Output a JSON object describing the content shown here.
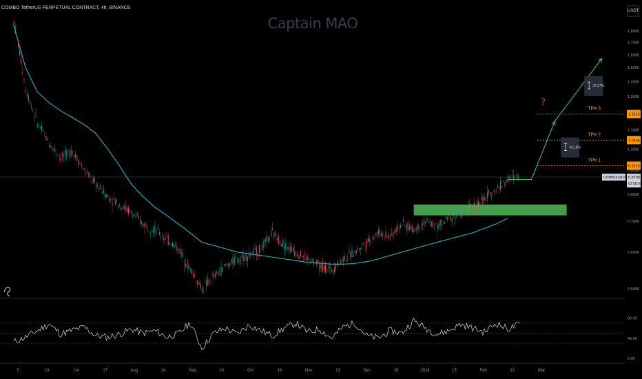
{
  "header": {
    "ticker": "COMBO TetherUS PERPETUAL CONTRACT, 4h, BINANCE",
    "watermark": "Captain MAO",
    "currency": "USDT"
  },
  "colors": {
    "background": "#000000",
    "ema": "#2aa6b8",
    "candle_up": "#26a69a",
    "candle_down": "#ef5350",
    "target_zone": "#4caf50",
    "projection_arrow": "#4caf50",
    "tp_line": "#ff9800",
    "question_mark": "#e53935",
    "rsi_line": "#e0e0e0",
    "grid": "#2a2e39"
  },
  "chart_data": [
    {
      "type": "line",
      "title": "",
      "x_tick_labels": [
        "5",
        "19",
        "Jul",
        "17",
        "Aug",
        "14",
        "Sep",
        "18",
        "Oct",
        "16",
        "Nov",
        "13",
        "Dec",
        "18",
        "2024",
        "15",
        "Feb",
        "12",
        "Mar"
      ],
      "y_tick_labels": [
        "1.8000",
        "1.7000",
        "1.6000",
        "1.5000",
        "1.4000",
        "1.3000",
        "1.2000",
        "1.1000",
        "1.0000",
        "0.9000",
        "0.8000",
        "0.7000",
        "0.6000",
        "0.5000"
      ],
      "y_scale": "log",
      "ylim": [
        0.48,
        1.92
      ],
      "series": [
        {
          "kind": "price",
          "x": [
            0,
            2,
            4,
            6,
            8,
            10,
            12,
            14,
            16,
            18,
            20,
            22,
            24,
            26,
            28,
            30,
            32,
            34,
            36,
            38,
            40,
            42,
            44,
            46,
            48,
            50,
            52,
            54,
            56,
            58,
            60,
            62,
            64,
            66,
            68,
            70,
            72,
            74,
            76,
            78,
            80,
            82,
            84,
            86
          ],
          "values": [
            1.88,
            1.35,
            1.14,
            1.03,
            0.96,
            0.99,
            0.9,
            0.84,
            0.79,
            0.76,
            0.73,
            0.69,
            0.67,
            0.64,
            0.61,
            0.55,
            0.5,
            0.53,
            0.56,
            0.58,
            0.59,
            0.61,
            0.66,
            0.62,
            0.6,
            0.58,
            0.56,
            0.55,
            0.58,
            0.6,
            0.63,
            0.66,
            0.65,
            0.69,
            0.67,
            0.7,
            0.68,
            0.71,
            0.73,
            0.75,
            0.78,
            0.82,
            0.86,
            0.88
          ]
        },
        {
          "kind": "ema",
          "x": [
            0,
            2,
            4,
            6,
            8,
            10,
            12,
            14,
            16,
            18,
            20,
            22,
            24,
            26,
            28,
            30,
            32,
            34,
            36,
            38,
            40,
            42,
            44,
            46,
            48,
            50,
            52,
            54,
            56,
            58,
            60,
            62,
            64,
            66,
            68,
            70,
            72,
            74,
            76,
            78,
            80,
            82,
            84
          ],
          "values": [
            1.85,
            1.5,
            1.33,
            1.26,
            1.21,
            1.17,
            1.13,
            1.08,
            1.0,
            0.92,
            0.84,
            0.79,
            0.75,
            0.72,
            0.69,
            0.66,
            0.63,
            0.62,
            0.61,
            0.6,
            0.595,
            0.59,
            0.585,
            0.58,
            0.575,
            0.57,
            0.568,
            0.565,
            0.565,
            0.567,
            0.572,
            0.58,
            0.59,
            0.6,
            0.61,
            0.62,
            0.63,
            0.64,
            0.65,
            0.66,
            0.675,
            0.69,
            0.71
          ]
        },
        {
          "kind": "projection",
          "x": [
            84,
            88,
            92,
            100
          ],
          "values": [
            0.86,
            0.86,
            1.15,
            1.57
          ]
        }
      ],
      "target_zone": {
        "x_start": 68,
        "x_end": 94,
        "y_low": 0.72,
        "y_high": 0.76
      },
      "horizontal_levels": [
        {
          "name": "TP# 1",
          "value": 0.9215,
          "label": "TP# 1",
          "price_label": "0.9215"
        },
        {
          "name": "TP# 2",
          "value": 1.0465,
          "label": "TP# 2",
          "price_label": "1.0465"
        },
        {
          "name": "TP# 3",
          "value": 1.1915,
          "label": "TP# 3",
          "price_label": "1.1915"
        }
      ],
      "current_price": {
        "symbol": "COMBOUSDT.P",
        "value": 0.8708,
        "price_label": "0.8708",
        "countdown": "02:58:01"
      },
      "annotations": [
        {
          "text": "?",
          "x": 90,
          "y": 1.245
        },
        {
          "text": "42.18%",
          "x": 93,
          "y": 1.06
        },
        {
          "text": "37.37%",
          "x": 97,
          "y": 1.44
        }
      ]
    },
    {
      "type": "line",
      "title": "",
      "ylim": [
        0,
        100
      ],
      "y_tick_labels": [
        "80.00",
        "40.00",
        "0.00"
      ],
      "reference_lines": [
        70,
        50,
        30
      ],
      "series": [
        {
          "kind": "rsi",
          "x": [
            0,
            2,
            4,
            6,
            8,
            10,
            12,
            14,
            16,
            18,
            20,
            22,
            24,
            26,
            28,
            30,
            32,
            34,
            36,
            38,
            40,
            42,
            44,
            46,
            48,
            50,
            52,
            54,
            56,
            58,
            60,
            62,
            64,
            66,
            68,
            70,
            72,
            74,
            76,
            78,
            80,
            82,
            84,
            86
          ],
          "values": [
            32,
            42,
            55,
            68,
            48,
            56,
            62,
            45,
            42,
            48,
            58,
            50,
            55,
            42,
            49,
            70,
            20,
            50,
            60,
            48,
            66,
            55,
            45,
            60,
            70,
            52,
            58,
            40,
            62,
            70,
            45,
            40,
            55,
            50,
            75,
            60,
            48,
            55,
            68,
            60,
            52,
            70,
            58,
            68
          ]
        }
      ]
    }
  ]
}
